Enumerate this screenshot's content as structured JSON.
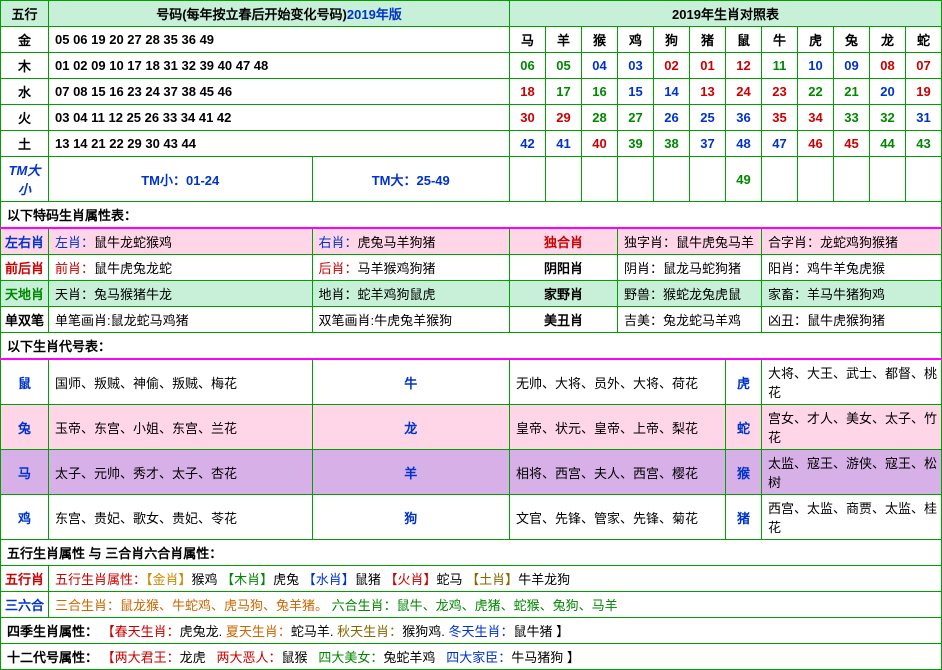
{
  "header": {
    "wuxing_label": "五行",
    "number_title": "号码(每年按立春后开始变化号码)",
    "year_version": "2019年版",
    "zodiac_title": "2019年生肖对照表"
  },
  "zodiac_names": [
    "马",
    "羊",
    "猴",
    "鸡",
    "狗",
    "猪",
    "鼠",
    "牛",
    "虎",
    "兔",
    "龙",
    "蛇"
  ],
  "wuxing_rows": [
    {
      "element": "金",
      "numbers": "05 06 19 20 27 28 35 36 49"
    },
    {
      "element": "木",
      "numbers": "01 02 09 10 17 18 31 32 39 40 47 48"
    },
    {
      "element": "水",
      "numbers": "07 08 15 16 23 24 37 38 45 46"
    },
    {
      "element": "火",
      "numbers": "03 04 11 12 25 26 33 34 41 42"
    },
    {
      "element": "土",
      "numbers": "13 14 21 22 29 30 43 44"
    }
  ],
  "zodiac_grid": [
    [
      "06",
      "05",
      "04",
      "03",
      "02",
      "01",
      "12",
      "11",
      "10",
      "09",
      "08",
      "07"
    ],
    [
      "18",
      "17",
      "16",
      "15",
      "14",
      "13",
      "24",
      "23",
      "22",
      "21",
      "20",
      "19"
    ],
    [
      "30",
      "29",
      "28",
      "27",
      "26",
      "25",
      "36",
      "35",
      "34",
      "33",
      "32",
      "31"
    ],
    [
      "42",
      "41",
      "40",
      "39",
      "38",
      "37",
      "48",
      "47",
      "46",
      "45",
      "44",
      "43"
    ]
  ],
  "zodiac_colors": [
    [
      "green",
      "green",
      "blue",
      "blue",
      "red",
      "red",
      "red",
      "green",
      "blue",
      "blue",
      "red",
      "red"
    ],
    [
      "red",
      "green",
      "green",
      "blue",
      "blue",
      "red",
      "red",
      "red",
      "green",
      "green",
      "blue",
      "red"
    ],
    [
      "red",
      "red",
      "green",
      "green",
      "blue",
      "blue",
      "blue",
      "red",
      "red",
      "green",
      "green",
      "blue"
    ],
    [
      "blue",
      "blue",
      "red",
      "green",
      "green",
      "blue",
      "blue",
      "blue",
      "red",
      "red",
      "green",
      "green"
    ]
  ],
  "tm_row": {
    "label": "TM大小",
    "small": "TM小：01-24",
    "large": "TM大：25-49",
    "extra": "49"
  },
  "attr_title": "以下特码生肖属性表：",
  "attr_rows": [
    {
      "bg": "pink-bg",
      "c1_lbl": "左右肖",
      "c1_cls": "blue",
      "c2_lbl": "左肖：",
      "c2_val": "鼠牛龙蛇猴鸡",
      "c2_cls": "blue",
      "c3_lbl": "右肖：",
      "c3_val": "虎兔马羊狗猪",
      "c3_cls": "blue",
      "c4_lbl": "独合肖",
      "c4_cls": "red",
      "c5_lbl": "独字肖：",
      "c5_val": "鼠牛虎兔马羊",
      "c6_lbl": "合字肖：",
      "c6_val": "龙蛇鸡狗猴猪"
    },
    {
      "bg": "",
      "c1_lbl": "前后肖",
      "c1_cls": "red",
      "c2_lbl": "前肖：",
      "c2_val": "鼠牛虎兔龙蛇",
      "c2_cls": "red",
      "c3_lbl": "后肖：",
      "c3_val": "马羊猴鸡狗猪",
      "c3_cls": "red",
      "c4_lbl": "阴阳肖",
      "c4_cls": "",
      "c5_lbl": "阴肖：",
      "c5_val": "鼠龙马蛇狗猪",
      "c6_lbl": "阳肖：",
      "c6_val": "鸡牛羊兔虎猴"
    },
    {
      "bg": "mint-bg",
      "c1_lbl": "天地肖",
      "c1_cls": "green",
      "c2_lbl": "天肖：",
      "c2_val": "兔马猴猪牛龙",
      "c2_cls": "",
      "c3_lbl": "地肖：",
      "c3_val": "蛇羊鸡狗鼠虎",
      "c3_cls": "",
      "c4_lbl": "家野肖",
      "c4_cls": "",
      "c5_lbl": "野兽：",
      "c5_val": "猴蛇龙兔虎鼠",
      "c6_lbl": "家畜：",
      "c6_val": "羊马牛猪狗鸡"
    },
    {
      "bg": "",
      "c1_lbl": "单双笔",
      "c1_cls": "",
      "c2_lbl": "单笔画肖:",
      "c2_val": "鼠龙蛇马鸡猪",
      "c2_cls": "",
      "c3_lbl": "双笔画肖:",
      "c3_val": "牛虎兔羊猴狗",
      "c3_cls": "",
      "c4_lbl": "美丑肖",
      "c4_cls": "",
      "c5_lbl": "吉美：",
      "c5_val": "兔龙蛇马羊鸡",
      "c6_lbl": "凶丑：",
      "c6_val": "鼠牛虎猴狗猪"
    }
  ],
  "code_title": "以下生肖代号表：",
  "code_rows": [
    {
      "bg": "",
      "a": "鼠",
      "av": "国师、叛贼、神偷、叛贼、梅花",
      "b": "牛",
      "bv": "无帅、大将、员外、大将、荷花",
      "c": "虎",
      "cv": "大将、大王、武士、都督、桃花"
    },
    {
      "bg": "pink-bg",
      "a": "兔",
      "av": "玉帝、东宫、小姐、东宫、兰花",
      "b": "龙",
      "bv": "皇帝、状元、皇帝、上帝、梨花",
      "c": "蛇",
      "cv": "宫女、才人、美女、太子、竹花"
    },
    {
      "bg": "plum-bg",
      "a": "马",
      "av": "太子、元帅、秀才、太子、杏花",
      "b": "羊",
      "bv": "相将、西宫、夫人、西宫、樱花",
      "c": "猴",
      "cv": "太监、寇王、游侠、寇王、松树"
    },
    {
      "bg": "",
      "a": "鸡",
      "av": "东宫、贵妃、歌女、贵妃、苓花",
      "b": "狗",
      "bv": "文官、先锋、管家、先锋、菊花",
      "c": "猪",
      "cv": "西宫、太监、商贾、太监、桂花"
    }
  ],
  "wuxing_attr_title": "五行生肖属性  与  三合肖六合肖属性：",
  "wuxing_attr": {
    "label": "五行肖",
    "cls": "red",
    "text": "五行生肖属性：【金肖】猴鸡  【木肖】虎兔  【水肖】鼠猪  【火肖】蛇马  【土肖】牛羊龙狗"
  },
  "sanliu": {
    "label": "三六合",
    "cls": "blue",
    "p1": "三合生肖：鼠龙猴、牛蛇鸡、虎马狗、兔羊猪。",
    "p2": "六合生肖：鼠牛、龙鸡、虎猪、蛇猴、兔狗、马羊"
  },
  "seasons": {
    "label": "四季生肖属性：",
    "spring_l": "【春天生肖：",
    "spring_v": "虎兔龙.",
    "summer_l": "夏天生肖：",
    "summer_v": "蛇马羊.",
    "autumn_l": "秋天生肖：",
    "autumn_v": "猴狗鸡.",
    "winter_l": "冬天生肖：",
    "winter_v": "鼠牛猪 】"
  },
  "twelve": {
    "label": "十二代号属性：",
    "k1": "【两大君王：",
    "v1": "龙虎",
    "k2": "两大恶人：",
    "v2": "鼠猴",
    "k3": "四大美女：",
    "v3": "兔蛇羊鸡",
    "k4": "四大家臣：",
    "v4": "牛马猪狗 】"
  },
  "colors": {
    "blue": "#0033cc",
    "red": "#cc0000",
    "green": "#008800",
    "orange": "#cc6600",
    "magenta": "#ff00ff"
  }
}
